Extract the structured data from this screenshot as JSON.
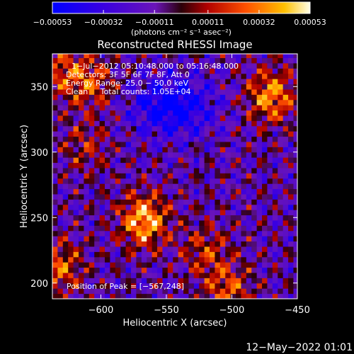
{
  "chart_data": {
    "type": "heatmap",
    "title": "Reconstructed RHESSI Image",
    "xlabel": "Heliocentric X (arcsec)",
    "ylabel": "Heliocentric Y (arcsec)",
    "xlim": [
      -637,
      -450
    ],
    "ylim": [
      188,
      375
    ],
    "xticks": [
      -600,
      -550,
      -500,
      -450
    ],
    "yticks": [
      200,
      250,
      300,
      350
    ],
    "xtick_labels": [
      "−600",
      "−550",
      "−500",
      "−450"
    ],
    "ytick_labels": [
      "200",
      "250",
      "300",
      "350"
    ],
    "colorbar": {
      "label": "(photons cm⁻² s⁻¹ asec⁻²)",
      "ticks": [
        -0.00053,
        -0.00032,
        -0.00011,
        0.00011,
        0.00032,
        0.00053
      ],
      "tick_labels": [
        "−0.00053",
        "−0.00032",
        "−0.00011",
        "0.00011",
        "0.00032",
        "0.00053"
      ],
      "range": [
        -0.00053,
        0.00053
      ]
    },
    "annotations": {
      "time_range": "1−Jul−2012 05:10:48.000 to 05:16:48.000",
      "detectors": "Detectors: 3F 5F 6F 7F 8F, Att 0",
      "energy_range": "Energy Range: 25.0 − 50.0 keV",
      "clean_line": "Clean     Total counts: 1.05E+04",
      "peak": "Position of Peak = [−567,248]"
    },
    "peak_position": [
      -567,
      248
    ],
    "sources": [
      {
        "x": -567,
        "y": 248,
        "amplitude": 0.00053
      },
      {
        "x": -470,
        "y": 343,
        "amplitude": 0.00045
      },
      {
        "x": -632,
        "y": 212,
        "amplitude": 0.00035
      },
      {
        "x": -607,
        "y": 353,
        "amplitude": 0.0003
      },
      {
        "x": -630,
        "y": 362,
        "amplitude": 0.00028
      },
      {
        "x": -520,
        "y": 225,
        "amplitude": 0.00025
      },
      {
        "x": -503,
        "y": 195,
        "amplitude": 0.00032
      },
      {
        "x": -612,
        "y": 305,
        "amplitude": 0.0002
      }
    ],
    "negative_region": {
      "x": -545,
      "y": 335,
      "amplitude": -0.00045
    }
  },
  "footer": {
    "date": "12−May−2022 01:01"
  }
}
